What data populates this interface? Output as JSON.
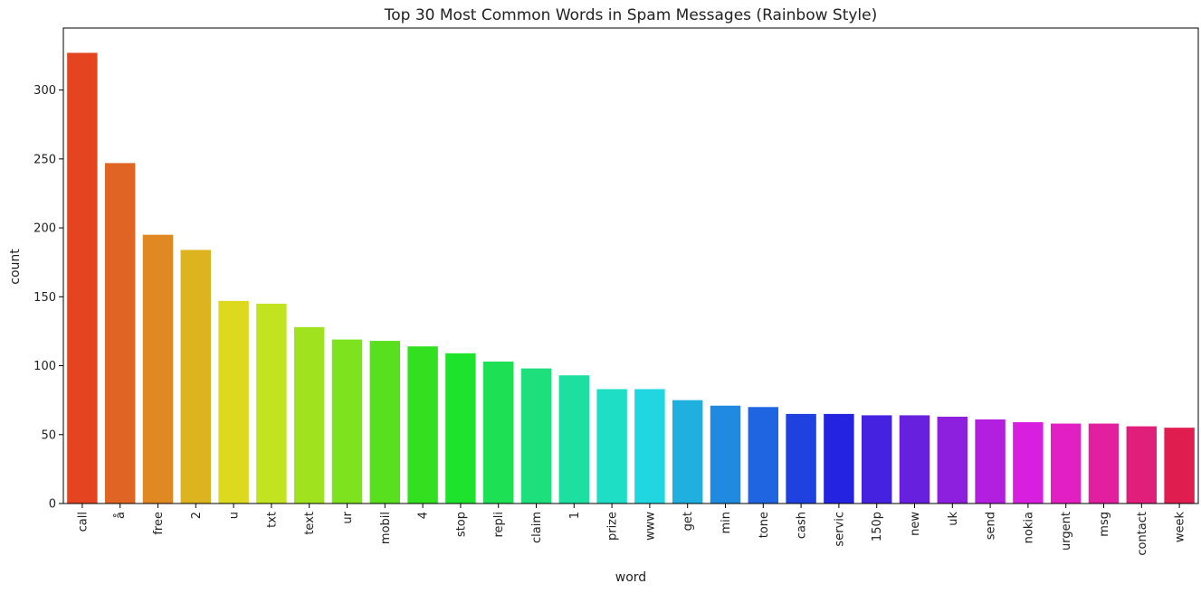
{
  "chart_data": {
    "type": "bar",
    "title": "Top 30 Most Common Words in Spam Messages (Rainbow Style)",
    "xlabel": "word",
    "ylabel": "count",
    "ylim": [
      0,
      345
    ],
    "yticks": [
      0,
      50,
      100,
      150,
      200,
      250,
      300
    ],
    "categories": [
      "call",
      "å",
      "free",
      "2",
      "u",
      "txt",
      "text",
      "ur",
      "mobil",
      "4",
      "stop",
      "repli",
      "claim",
      "1",
      "prize",
      "www",
      "get",
      "min",
      "tone",
      "cash",
      "servic",
      "150p",
      "new",
      "uk",
      "send",
      "nokia",
      "urgent",
      "msg",
      "contact",
      "week"
    ],
    "values": [
      327,
      247,
      195,
      184,
      147,
      145,
      128,
      119,
      118,
      114,
      109,
      103,
      98,
      93,
      83,
      83,
      75,
      71,
      70,
      65,
      65,
      64,
      64,
      63,
      61,
      59,
      58,
      58,
      56,
      55
    ],
    "colors": [
      "#e44420",
      "#e06424",
      "#e08822",
      "#ddb320",
      "#dcd91f",
      "#c2e31f",
      "#a1e21f",
      "#7ee21f",
      "#58e01f",
      "#33e01f",
      "#1ee32c",
      "#1ee055",
      "#1ddf7c",
      "#1ddf9f",
      "#1edfc6",
      "#1fd6e1",
      "#1fb0e0",
      "#1f8ae0",
      "#1f64e0",
      "#1f41e0",
      "#2424e0",
      "#4521e0",
      "#6820df",
      "#8d20df",
      "#b21fdf",
      "#d81fe0",
      "#e21fc2",
      "#e11f9f",
      "#e11e79",
      "#df1d4f"
    ],
    "grid": false,
    "legend": "none"
  }
}
